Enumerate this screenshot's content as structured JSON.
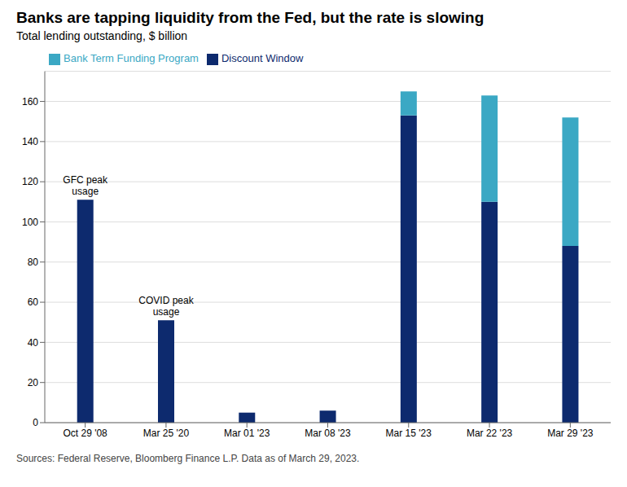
{
  "chart_data": {
    "type": "bar",
    "title": "Banks are tapping liquidity from the Fed, but the rate is slowing",
    "subtitle": "Total lending outstanding, $ billion",
    "source": "Sources: Federal Reserve, Bloomberg Finance L.P. Data as of March 29, 2023.",
    "categories": [
      "Oct 29 '08",
      "Mar 25 '20",
      "Mar 01 '23",
      "Mar 08 '23",
      "Mar 15 '23",
      "Mar 22 '23",
      "Mar 29 '23"
    ],
    "series": [
      {
        "name": "Discount Window",
        "color": "#0d2a6e",
        "values": [
          111,
          51,
          5,
          6,
          153,
          110,
          88
        ]
      },
      {
        "name": "Bank Term Funding Program",
        "color": "#3ba8c4",
        "values": [
          0,
          0,
          0,
          0,
          12,
          53,
          64
        ]
      }
    ],
    "stacked": true,
    "ylim": [
      0,
      175
    ],
    "yticks": [
      0,
      20,
      40,
      60,
      80,
      100,
      120,
      140,
      160
    ],
    "grid": true,
    "legend": "upper left",
    "annotations": [
      {
        "text": "GFC peak\nusage",
        "category": "Oct 29 '08"
      },
      {
        "text": "COVID peak\nusage",
        "category": "Mar 25 '20"
      }
    ]
  }
}
